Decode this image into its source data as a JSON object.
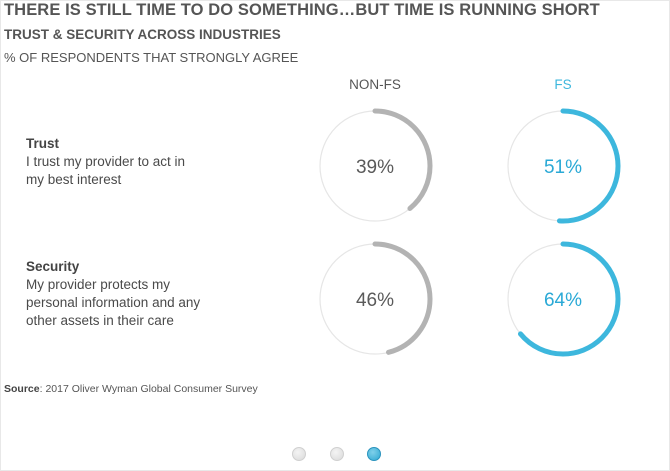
{
  "header": {
    "title": "THERE IS STILL TIME TO DO SOMETHING…BUT TIME IS RUNNING SHORT",
    "subtitle": "TRUST & SECURITY ACROSS INDUSTRIES",
    "measure": "% OF RESPONDENTS THAT STRONGLY AGREE"
  },
  "columns": [
    {
      "label": "NON-FS",
      "color": "#b3b3b3"
    },
    {
      "label": "FS",
      "color": "#3db7dd"
    }
  ],
  "rows": [
    {
      "title": "Trust",
      "description": "I trust my provider to act in\nmy best interest"
    },
    {
      "title": "Security",
      "description": "My provider protects my\npersonal information and any\nother assets in their care"
    }
  ],
  "chart_data": {
    "type": "donut",
    "categories": [
      "Trust",
      "Security"
    ],
    "series": [
      {
        "name": "NON-FS",
        "values": [
          39,
          46
        ],
        "labels": [
          "39%",
          "46%"
        ]
      },
      {
        "name": "FS",
        "values": [
          51,
          64
        ],
        "labels": [
          "51%",
          "64%"
        ]
      }
    ],
    "unit": "%",
    "track_color": "#e6e6e6",
    "text_colors": {
      "NON-FS": "#5a5a5a",
      "FS": "#2aa9d6"
    }
  },
  "source": {
    "label": "Source",
    "text": ": 2017 Oliver Wyman Global Consumer Survey"
  },
  "pagination": {
    "total": 3,
    "active_index": 2
  }
}
